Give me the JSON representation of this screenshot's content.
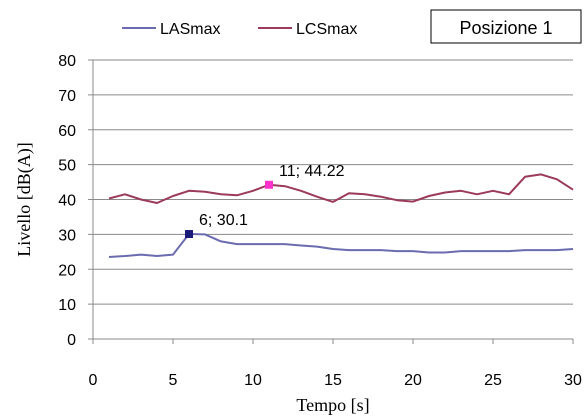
{
  "chart_data": {
    "type": "line",
    "xlabel": "Tempo [s]",
    "ylabel": "Livello [dB(A)]",
    "xlim": [
      0,
      30
    ],
    "ylim": [
      0,
      80
    ],
    "xticks": [
      0,
      5,
      10,
      15,
      20,
      25,
      30
    ],
    "yticks": [
      0,
      10,
      20,
      30,
      40,
      50,
      60,
      70,
      80
    ],
    "grid": "horizontal",
    "legend_position": "top",
    "position_box": "Posizione 1",
    "x": [
      1,
      2,
      3,
      4,
      5,
      6,
      7,
      8,
      9,
      10,
      11,
      12,
      13,
      14,
      15,
      16,
      17,
      18,
      19,
      20,
      21,
      22,
      23,
      24,
      25,
      26,
      27,
      28,
      29,
      30
    ],
    "series": [
      {
        "name": "LASmax",
        "color": "#6b6bb0",
        "values": [
          23.5,
          23.8,
          24.2,
          23.8,
          24.2,
          30.1,
          30.0,
          28.0,
          27.2,
          27.2,
          27.2,
          27.2,
          26.8,
          26.5,
          25.8,
          25.5,
          25.5,
          25.5,
          25.2,
          25.2,
          24.8,
          24.8,
          25.2,
          25.2,
          25.2,
          25.2,
          25.5,
          25.5,
          25.5,
          25.8
        ]
      },
      {
        "name": "LCSmax",
        "color": "#9b3a5a",
        "values": [
          40.3,
          41.5,
          40.0,
          39.0,
          41.0,
          42.5,
          42.2,
          41.5,
          41.2,
          42.5,
          44.22,
          43.8,
          42.5,
          40.8,
          39.3,
          41.8,
          41.5,
          40.8,
          39.8,
          39.4,
          41.0,
          42.0,
          42.5,
          41.5,
          42.5,
          41.5,
          46.5,
          47.2,
          45.8,
          42.8
        ]
      }
    ],
    "annotations": [
      {
        "series": "LASmax",
        "x": 6,
        "y": 30.1,
        "label": "6; 30.1",
        "marker_color": "#1a1a7a"
      },
      {
        "series": "LCSmax",
        "x": 11,
        "y": 44.22,
        "label": "11; 44.22",
        "marker_color": "#ff33cc"
      }
    ]
  }
}
